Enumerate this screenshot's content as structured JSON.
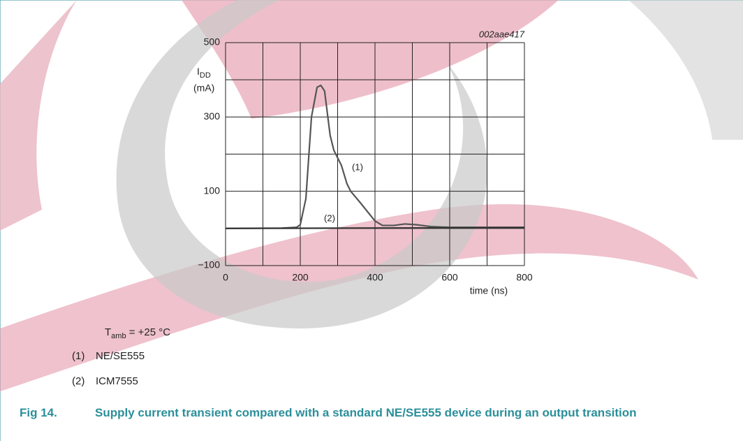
{
  "chart_data": {
    "type": "line",
    "code": "002aae417",
    "ylabel": {
      "main": "I",
      "sub": "DD",
      "unit": "(mA)"
    },
    "xlabel": "time (ns)",
    "xlim": [
      0,
      800
    ],
    "ylim": [
      -100,
      500
    ],
    "xticks": [
      0,
      200,
      400,
      600,
      800
    ],
    "yticks": [
      {
        "value": -100,
        "label": "−100"
      },
      100,
      300,
      500
    ],
    "xgrid": [
      0,
      100,
      200,
      300,
      400,
      500,
      600,
      700,
      800
    ],
    "ygrid": [
      -100,
      0,
      100,
      200,
      300,
      400,
      500
    ],
    "series": [
      {
        "name": "NE/SE555",
        "label": "(1)",
        "color": "#555555",
        "x": [
          0,
          150,
          190,
          200,
          215,
          230,
          245,
          255,
          265,
          280,
          290,
          310,
          325,
          335,
          360,
          400,
          420,
          450,
          480,
          510,
          550,
          600,
          800
        ],
        "values": [
          0,
          1,
          3,
          10,
          80,
          300,
          380,
          385,
          370,
          250,
          210,
          170,
          120,
          100,
          70,
          20,
          8,
          8,
          12,
          10,
          5,
          3,
          3
        ]
      },
      {
        "name": "ICM7555",
        "label": "(2)",
        "color": "#333333",
        "x": [
          0,
          800
        ],
        "values": [
          0,
          2
        ]
      }
    ],
    "condition": {
      "main": "T",
      "sub": "amb",
      "rest": " = +25 °C"
    },
    "caption": {
      "number": "Fig 14.",
      "text": "Supply current transient compared with a standard NE/SE555 device during an output transition"
    }
  }
}
